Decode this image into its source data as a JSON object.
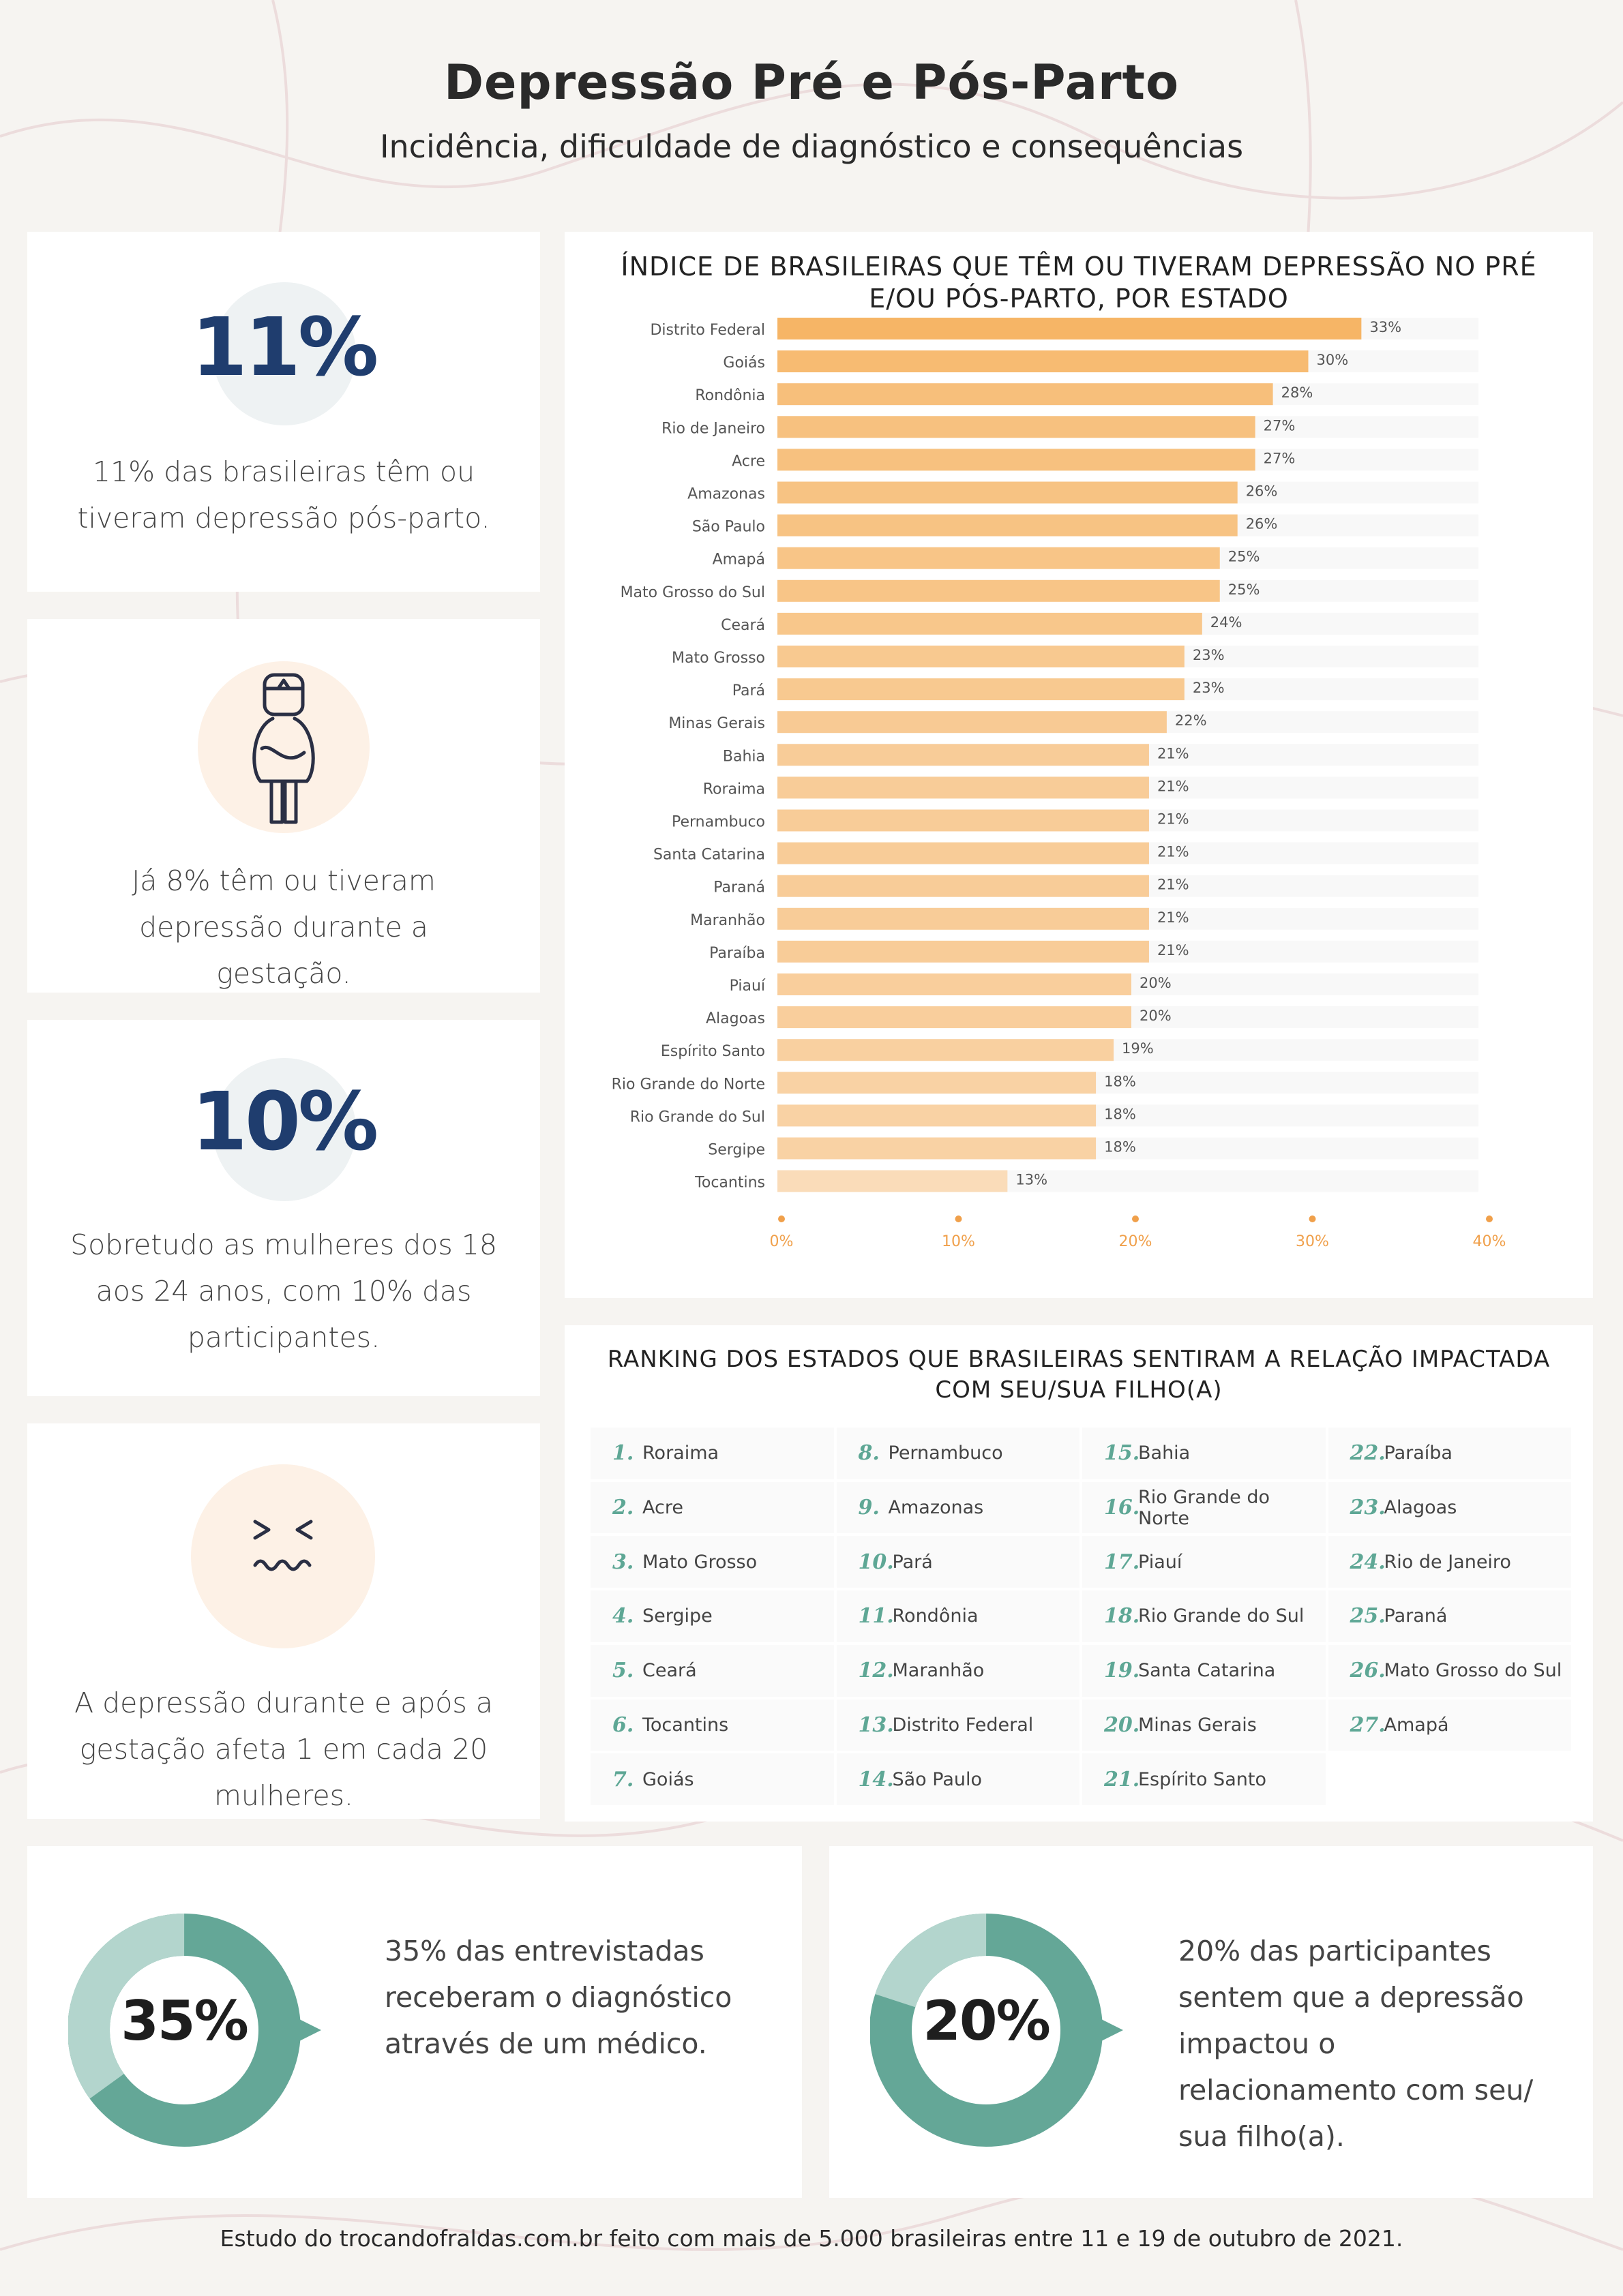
{
  "header": {
    "title": "Depressão Pré e Pós-Parto",
    "subtitle": "Incidência, dificuldade de diagnóstico e consequências"
  },
  "cards": {
    "stat1": {
      "value": "11%",
      "text": "11% das brasileiras têm ou tiveram depressão pós-parto."
    },
    "stat2": {
      "icon": "pregnant-woman-icon",
      "text": "Já 8% têm ou tiveram depressão durante a gestação."
    },
    "stat3": {
      "value": "10%",
      "text": "Sobretudo as mulheres dos 18 aos 24 anos, com 10% das participantes."
    },
    "stat4": {
      "icon": "sad-face-icon",
      "text": "A depressão durante e após a gestação afeta 1 em cada 20 mulheres."
    }
  },
  "chart_data": {
    "type": "bar",
    "orientation": "horizontal",
    "title": "ÍNDICE DE BRASILEIRAS QUE TÊM OU TIVERAM DEPRESSÃO NO PRÉ E/OU PÓS-PARTO, POR ESTADO",
    "categories": [
      "Distrito Federal",
      "Goiás",
      "Rondônia",
      "Rio de Janeiro",
      "Acre",
      "Amazonas",
      "São Paulo",
      "Amapá",
      "Mato Grosso do Sul",
      "Ceará",
      "Mato Grosso",
      "Pará",
      "Minas Gerais",
      "Bahia",
      "Roraima",
      "Pernambuco",
      "Santa Catarina",
      "Paraná",
      "Maranhão",
      "Paraíba",
      "Piauí",
      "Alagoas",
      "Espírito Santo",
      "Rio Grande do Norte",
      "Rio Grande do Sul",
      "Sergipe",
      "Tocantins"
    ],
    "values": [
      33,
      30,
      28,
      27,
      27,
      26,
      26,
      25,
      25,
      24,
      23,
      23,
      22,
      21,
      21,
      21,
      21,
      21,
      21,
      21,
      20,
      20,
      19,
      18,
      18,
      18,
      13
    ],
    "xlim": [
      0,
      40
    ],
    "xticks": [
      "0%",
      "10%",
      "20%",
      "30%",
      "40%"
    ],
    "grid": false,
    "colors": {
      "dark": "#f6b566",
      "light": "#fadcb9",
      "track": "#f8f8f8",
      "tick": "#f0a04b"
    }
  },
  "ranking": {
    "title": "RANKING DOS ESTADOS QUE BRASILEIRAS SENTIRAM A RELAÇÃO IMPACTADA COM SEU/SUA FILHO(A)",
    "items": [
      {
        "n": "1.",
        "state": "Roraima"
      },
      {
        "n": "8.",
        "state": "Pernambuco"
      },
      {
        "n": "15.",
        "state": "Bahia"
      },
      {
        "n": "22.",
        "state": "Paraíba"
      },
      {
        "n": "2.",
        "state": "Acre"
      },
      {
        "n": "9.",
        "state": "Amazonas"
      },
      {
        "n": "16.",
        "state": "Rio Grande do Norte"
      },
      {
        "n": "23.",
        "state": "Alagoas"
      },
      {
        "n": "3.",
        "state": "Mato Grosso"
      },
      {
        "n": "10.",
        "state": "Pará"
      },
      {
        "n": "17.",
        "state": "Piauí"
      },
      {
        "n": "24.",
        "state": "Rio de Janeiro"
      },
      {
        "n": "4.",
        "state": "Sergipe"
      },
      {
        "n": "11.",
        "state": "Rondônia"
      },
      {
        "n": "18.",
        "state": "Rio Grande do Sul"
      },
      {
        "n": "25.",
        "state": "Paraná"
      },
      {
        "n": "5.",
        "state": "Ceará"
      },
      {
        "n": "12.",
        "state": "Maranhão"
      },
      {
        "n": "19.",
        "state": "Santa Catarina"
      },
      {
        "n": "26.",
        "state": "Mato Grosso do Sul"
      },
      {
        "n": "6.",
        "state": "Tocantins"
      },
      {
        "n": "13.",
        "state": "Distrito Federal"
      },
      {
        "n": "20.",
        "state": "Minas Gerais"
      },
      {
        "n": "27.",
        "state": "Amapá"
      },
      {
        "n": "7.",
        "state": "Goiás"
      },
      {
        "n": "14.",
        "state": "São Paulo"
      },
      {
        "n": "21.",
        "state": "Espírito Santo"
      },
      {
        "n": "",
        "state": ""
      }
    ]
  },
  "donuts": {
    "d1": {
      "value": "35%",
      "fraction": 0.35,
      "text": "35% das entrevistadas receberam o diagnóstico através de um médico."
    },
    "d2": {
      "value": "20%",
      "fraction": 0.2,
      "text": "20% das participantes sentem que a depressão impactou o relacionamento com seu/ sua filho(a)."
    },
    "colors": {
      "main": "#64a797",
      "light": "#b3d5cd"
    }
  },
  "footer": {
    "text": "Estudo do trocandofraldas.com.br feito com mais de 5.000 brasileiras entre 11 e 19 de outubro de 2021."
  }
}
